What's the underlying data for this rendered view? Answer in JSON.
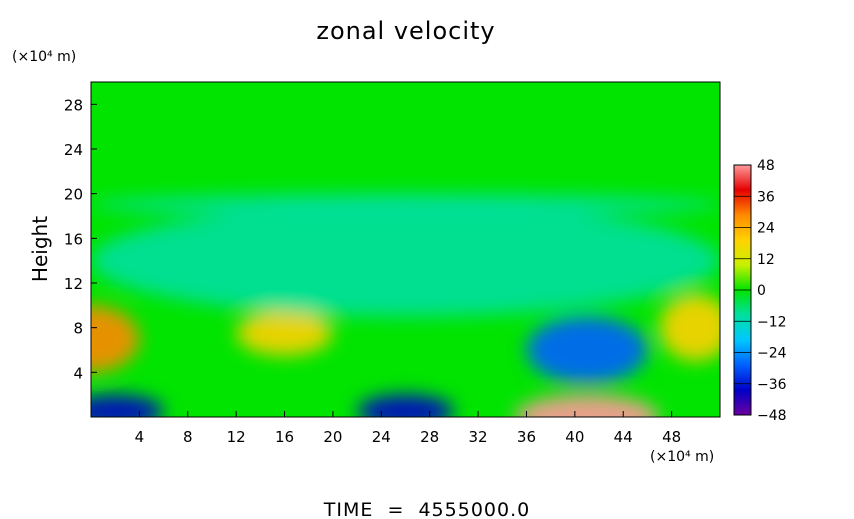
{
  "chart_data": {
    "type": "heatmap",
    "title": "zonal velocity",
    "ylabel": "Height",
    "xlabel": "",
    "x_unit": "(×10⁴ m)",
    "y_unit": "(×10⁴ m)",
    "footer": "TIME  =  4555000.0",
    "xlim": [
      0,
      52
    ],
    "ylim": [
      0,
      30
    ],
    "x_ticks": [
      4,
      8,
      12,
      16,
      20,
      24,
      28,
      32,
      36,
      40,
      44,
      48
    ],
    "y_ticks": [
      4,
      8,
      12,
      16,
      20,
      24,
      28
    ],
    "colorbar": {
      "range": [
        -48,
        48
      ],
      "ticks": [
        48,
        36,
        24,
        12,
        0,
        -12,
        -24,
        -36,
        -48
      ],
      "colors": [
        "#ff9a9a",
        "#e60000",
        "#ff8a00",
        "#ffd200",
        "#c8f000",
        "#00e400",
        "#00e0a0",
        "#00c8ff",
        "#0060ff",
        "#0000c8",
        "#6a00a0"
      ]
    },
    "grid": false,
    "features": [
      {
        "x": 0,
        "y": 7.0,
        "value": 32,
        "rx": 4,
        "ry": 3
      },
      {
        "x": 16,
        "y": 7.5,
        "value": 22,
        "rx": 4,
        "ry": 2
      },
      {
        "x": 41,
        "y": 6.0,
        "value": -26,
        "rx": 5,
        "ry": 3
      },
      {
        "x": 41,
        "y": 0.0,
        "value": 44,
        "rx": 6,
        "ry": 2
      },
      {
        "x": 2,
        "y": 0.5,
        "value": -42,
        "rx": 4,
        "ry": 1.5
      },
      {
        "x": 26,
        "y": 0.5,
        "value": -36,
        "rx": 4,
        "ry": 1.5
      },
      {
        "x": 50,
        "y": 8.0,
        "value": 18,
        "rx": 3,
        "ry": 3
      },
      {
        "x": 26,
        "y": 14.0,
        "value": -9,
        "rx": 26,
        "ry": 5
      },
      {
        "x": 26,
        "y": 19.0,
        "value": -12,
        "rx": 26,
        "ry": 1
      }
    ]
  }
}
